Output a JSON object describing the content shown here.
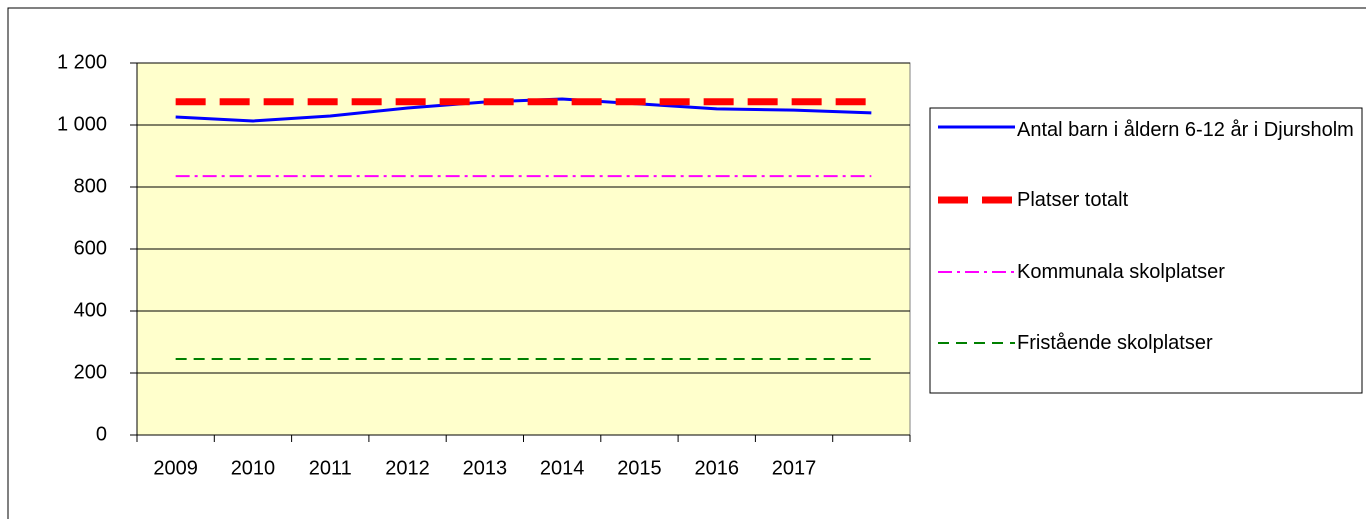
{
  "chart_data": {
    "type": "line",
    "categories": [
      "2009",
      "2010",
      "2011",
      "2012",
      "2013",
      "2014",
      "2015",
      "2016",
      "2017",
      null
    ],
    "series": [
      {
        "name": "Antal barn i åldern 6-12 år i Djursholm",
        "color": "#0000ff",
        "values": [
          1026,
          1013,
          1029,
          1055,
          1074,
          1084,
          1068,
          1052,
          1048,
          1039
        ]
      },
      {
        "name": "Platser totalt",
        "color": "#ff0000",
        "values": [
          1075,
          1075,
          1075,
          1075,
          1075,
          1075,
          1075,
          1075,
          1075,
          1075
        ]
      },
      {
        "name": "Kommunala skolplatser",
        "color": "#ff00ff",
        "values": [
          835,
          835,
          835,
          835,
          835,
          835,
          835,
          835,
          835,
          835
        ]
      },
      {
        "name": "Fristående skolplatser",
        "color": "#008000",
        "values": [
          245,
          245,
          245,
          245,
          245,
          245,
          245,
          245,
          245,
          245
        ]
      }
    ],
    "ylim": [
      0,
      1200
    ],
    "yticks": [
      0,
      200,
      400,
      600,
      800,
      {
        "value": 1000,
        "label": "1 000"
      },
      {
        "value": 1200,
        "label": "1 200"
      }
    ],
    "grid": true,
    "legend": "right",
    "plot_background": "#ffffcc"
  }
}
